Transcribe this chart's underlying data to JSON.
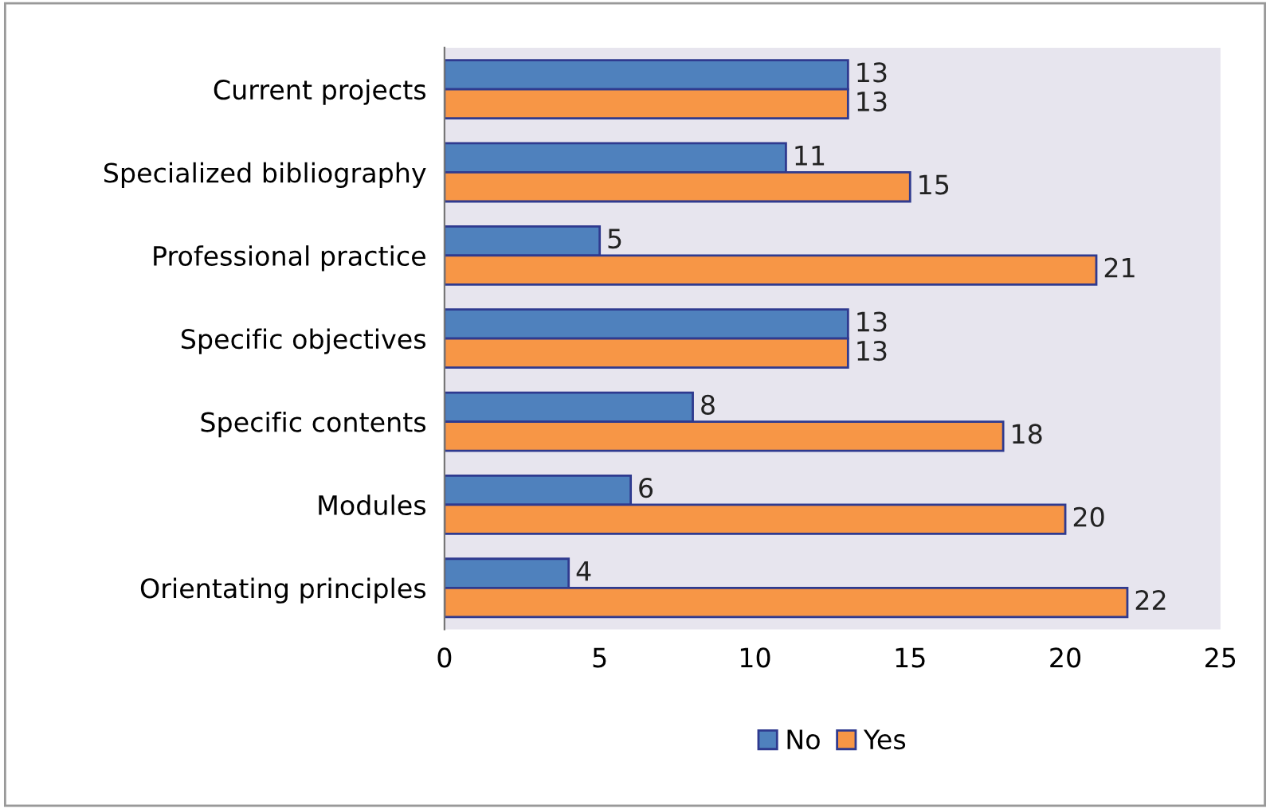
{
  "chart_data": {
    "type": "bar",
    "orientation": "horizontal",
    "categories": [
      "Current projects",
      "Specialized bibliography",
      "Professional practice",
      "Specific objectives",
      "Specific contents",
      "Modules",
      "Orientating principles"
    ],
    "series": [
      {
        "name": "No",
        "color": "#4f81bd",
        "values": [
          13,
          11,
          5,
          13,
          8,
          6,
          4
        ]
      },
      {
        "name": "Yes",
        "color": "#f79646",
        "values": [
          13,
          15,
          21,
          13,
          18,
          20,
          22
        ]
      }
    ],
    "xlim": [
      0,
      25
    ],
    "xticks": [
      0,
      5,
      10,
      15,
      20,
      25
    ],
    "data_labels": true,
    "legend": "bottom",
    "grid": false
  }
}
